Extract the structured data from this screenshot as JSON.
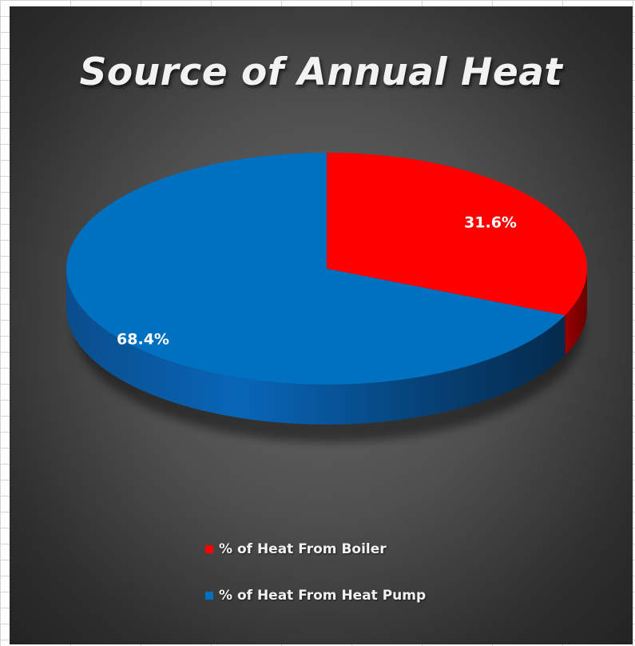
{
  "chart_data": {
    "type": "pie",
    "title": "Source of Annual Heat",
    "categories": [
      "% of Heat From Boiler",
      "% of Heat From Heat Pump"
    ],
    "values": [
      31.6,
      68.4
    ],
    "data_labels": [
      "31.6%",
      "68.4%"
    ],
    "colors": [
      "#ff0000",
      "#0070c0"
    ],
    "style": "3d",
    "legend_position": "bottom"
  }
}
